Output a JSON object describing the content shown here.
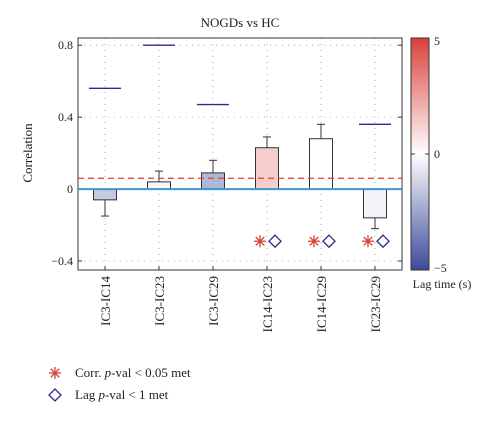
{
  "chart_data": {
    "type": "bar",
    "title": "NOGDs vs HC",
    "ylabel": "Correlation",
    "ylim": [
      -0.45,
      0.84
    ],
    "yticks": [
      {
        "value": -0.4,
        "label": "−0.4"
      },
      {
        "value": 0,
        "label": "0"
      },
      {
        "value": 0.4,
        "label": "0.4"
      },
      {
        "value": 0.8,
        "label": "0.8"
      }
    ],
    "categories": [
      "IC3-IC14",
      "IC3-IC23",
      "IC3-IC29",
      "IC14-IC23",
      "IC14-IC29",
      "IC23-IC29"
    ],
    "bars": [
      {
        "category": "IC3-IC14",
        "value": -0.06,
        "err_low": -0.15,
        "err_high": 0.0,
        "lag": -1.5,
        "corr_sig": false,
        "lag_sig": false
      },
      {
        "category": "IC3-IC23",
        "value": 0.04,
        "err_low": 0.0,
        "err_high": 0.1,
        "lag": 0.3,
        "corr_sig": false,
        "lag_sig": false
      },
      {
        "category": "IC3-IC29",
        "value": 0.09,
        "err_low": 0.0,
        "err_high": 0.16,
        "lag": -2.0,
        "corr_sig": false,
        "lag_sig": false
      },
      {
        "category": "IC14-IC23",
        "value": 0.23,
        "err_low": 0.0,
        "err_high": 0.29,
        "lag": 1.3,
        "corr_sig": true,
        "lag_sig": true
      },
      {
        "category": "IC14-IC29",
        "value": 0.28,
        "err_low": 0.0,
        "err_high": 0.36,
        "lag": 0.0,
        "corr_sig": true,
        "lag_sig": true
      },
      {
        "category": "IC23-IC29",
        "value": -0.16,
        "err_low": -0.22,
        "err_high": 0.0,
        "lag": -0.3,
        "corr_sig": true,
        "lag_sig": true
      }
    ],
    "reference_markers": [
      {
        "category": "IC3-IC14",
        "value": 0.56
      },
      {
        "category": "IC3-IC23",
        "value": 0.8
      },
      {
        "category": "IC3-IC29",
        "value": 0.47
      },
      {
        "category": "IC23-IC29",
        "value": 0.36
      }
    ],
    "threshold_line": {
      "value": 0.06,
      "color": "#d9413a",
      "style": "dashed"
    },
    "zero_line": {
      "value": 0,
      "color": "#3a98d6"
    },
    "grid": "dotted",
    "colorbar": {
      "label": "Lag time (s)",
      "min": -5,
      "max": 5,
      "ticks": [
        {
          "value": 5,
          "label": "5"
        },
        {
          "value": 0,
          "label": "0"
        },
        {
          "value": -5,
          "label": "−5"
        }
      ],
      "colors": {
        "low": "#3d4a9a",
        "mid": "#ffffff",
        "high": "#d9413a"
      }
    },
    "legend": {
      "position": "bottom-left",
      "entries": [
        {
          "marker": "asterisk",
          "color": "#d9413a",
          "prefix": "Corr. ",
          "italic": "p",
          "suffix": "-val < 0.05 met"
        },
        {
          "marker": "diamond",
          "color": "#2d2b8a",
          "prefix": "Lag ",
          "italic": "p",
          "suffix": "-val < 1 met"
        }
      ]
    }
  }
}
